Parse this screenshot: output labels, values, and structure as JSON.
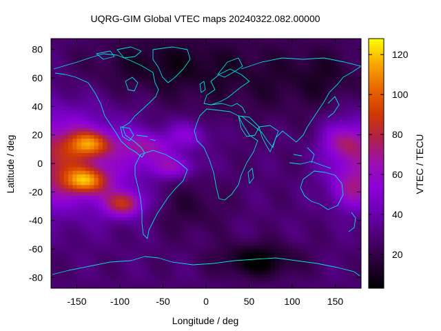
{
  "chart_data": {
    "type": "heatmap",
    "title": "UQRG-GIM Global VTEC maps 20240322.082.00000",
    "xlabel": "Longitude / deg",
    "ylabel": "Latitude / deg",
    "colorbar_label": "VTEC / TECU",
    "xlim": [
      -180,
      180
    ],
    "ylim": [
      -87.5,
      87.5
    ],
    "x_ticks": [
      -150,
      -100,
      -50,
      0,
      50,
      100,
      150
    ],
    "y_ticks": [
      -80,
      -60,
      -40,
      -20,
      0,
      20,
      40,
      60,
      80
    ],
    "colorbar_range": [
      3,
      128
    ],
    "colorbar_ticks": [
      20,
      40,
      60,
      80,
      100,
      120
    ],
    "colormap": "gnuplot (black-purple-red-yellow)",
    "coastline_color": "#00e5e5",
    "grid": false,
    "map_description": "global vertical total electron content, peak (~120 TECU) in two equatorial anomaly crests over the eastern Pacific near -130 lon at ±15 lat, elevated values (60-90) across the Pacific extending to the western edge and east to South America and the mid-Atlantic; lower (25-40) over Africa/Europe/Asia; minimum (<10) over Antarctica near 30-100 lon"
  }
}
